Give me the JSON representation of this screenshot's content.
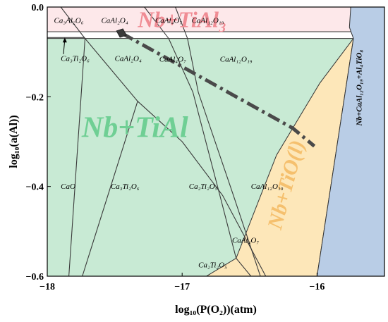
{
  "chart_data": {
    "type": "phase-diagram",
    "xlabel": "log₁₀(P(O₂))(atm)",
    "ylabel": "log₁₀(a(Al))",
    "xlim": [
      -18,
      -15.5
    ],
    "ylim": [
      -0.6,
      0.0
    ],
    "x_ticks": [
      {
        "value": -18,
        "label": "−18"
      },
      {
        "value": -17,
        "label": "−17"
      },
      {
        "value": -16,
        "label": "−16"
      }
    ],
    "y_ticks": [
      {
        "value": 0.0,
        "label": "0.0"
      },
      {
        "value": -0.2,
        "label": "−0.2"
      },
      {
        "value": -0.4,
        "label": "−0.4"
      },
      {
        "value": -0.6,
        "label": "−0.6"
      }
    ],
    "colors": {
      "nb_tial3": "#fde8ea",
      "nb_tial": "#c8ead4",
      "nb_tio": "#fde7b9",
      "nb_caal12_ti4": "#b9cde6",
      "big_tial3_text": "#f08c94",
      "big_tial_text": "#6fcf94",
      "big_tio_text": "#f5c06e"
    },
    "phase_regions": [
      {
        "name": "Nb+TiAl3",
        "polygon": [
          [
            -18,
            0.0
          ],
          [
            -15.75,
            0.0
          ],
          [
            -15.75,
            -0.055
          ],
          [
            -18,
            -0.055
          ]
        ]
      },
      {
        "name": "Nb+TiAl",
        "polygon": [
          [
            -18,
            -0.07
          ],
          [
            -15.73,
            -0.07
          ],
          [
            -16.0,
            -0.6
          ],
          [
            -18,
            -0.6
          ]
        ]
      },
      {
        "name": "Nb+TiO(l)",
        "polygon": [
          [
            -15.73,
            -0.07
          ],
          [
            -16.0,
            -0.6
          ],
          [
            -16.82,
            -0.6
          ],
          [
            -16.6,
            -0.56
          ],
          [
            -16.3,
            -0.33
          ],
          [
            -15.98,
            -0.17
          ]
        ]
      },
      {
        "name": "Nb+CaAl12O19+Al4TiO8",
        "polygon": [
          [
            -15.75,
            0.0
          ],
          [
            -15.5,
            0.0
          ],
          [
            -15.5,
            -0.6
          ],
          [
            -16.0,
            -0.6
          ],
          [
            -15.73,
            -0.07
          ],
          [
            -15.76,
            -0.045
          ]
        ]
      }
    ],
    "boundaries": [
      [
        [
          -17.9,
          0.0
        ],
        [
          -17.72,
          -0.07
        ],
        [
          -17.33,
          -0.21
        ],
        [
          -17.0,
          -0.3
        ],
        [
          -16.7,
          -0.42
        ],
        [
          -16.38,
          -0.6
        ]
      ],
      [
        [
          -17.72,
          -0.07
        ],
        [
          -17.84,
          -0.6
        ]
      ],
      [
        [
          -17.33,
          -0.21
        ],
        [
          -17.74,
          -0.6
        ]
      ],
      [
        [
          -17.28,
          0.0
        ],
        [
          -17.1,
          -0.07
        ],
        [
          -16.92,
          -0.19
        ],
        [
          -16.72,
          -0.42
        ],
        [
          -16.6,
          -0.56
        ],
        [
          -16.49,
          -0.6
        ]
      ],
      [
        [
          -17.05,
          0.0
        ],
        [
          -16.96,
          -0.07
        ],
        [
          -16.88,
          -0.19
        ],
        [
          -16.62,
          -0.42
        ],
        [
          -16.42,
          -0.6
        ]
      ],
      [
        [
          -18,
          -0.055
        ],
        [
          -17.72,
          -0.055
        ]
      ],
      [
        [
          -18,
          -0.068
        ],
        [
          -17.72,
          -0.068
        ]
      ]
    ],
    "dashed_path": [
      [
        -17.45,
        -0.058
      ],
      [
        -16.18,
        -0.27
      ],
      [
        -16.02,
        -0.31
      ]
    ],
    "marker": {
      "x": -17.45,
      "y": -0.058
    },
    "phase_labels": [
      {
        "text": "Nb+TiAl₃",
        "x": -17.0,
        "y": -0.045,
        "size": 32
      },
      {
        "text": "Nb+TiAl",
        "x": -17.35,
        "y": -0.29,
        "size": 42
      },
      {
        "text": "Nb+TiO(l)",
        "x": -16.18,
        "y": -0.4,
        "size": 30,
        "rotate": -75
      },
      {
        "text": "Nb+CaAl₁₂O₁₉+Al₄TiO₈",
        "x": -15.67,
        "y": -0.18,
        "size": 11,
        "rotate": -90
      }
    ],
    "region_labels": [
      {
        "text": "Ca₃Al₂O₆",
        "x": -17.95,
        "y": -0.035
      },
      {
        "text": "CaAl₂O₄",
        "x": -17.6,
        "y": -0.035
      },
      {
        "text": "CaAl₄O₇",
        "x": -17.2,
        "y": -0.035
      },
      {
        "text": "CaAl₁₂O₁₉",
        "x": -16.93,
        "y": -0.035
      },
      {
        "text": "Ca₃Ti₂O₆",
        "x": -17.9,
        "y": -0.12
      },
      {
        "text": "CaAl₂O₄",
        "x": -17.5,
        "y": -0.12
      },
      {
        "text": "CaAl₄O₇",
        "x": -17.17,
        "y": -0.122
      },
      {
        "text": "CaAl₁₂O₁₉",
        "x": -16.72,
        "y": -0.122
      },
      {
        "text": "CaO",
        "x": -17.9,
        "y": -0.405
      },
      {
        "text": "Ca₃Ti₂O₆",
        "x": -17.53,
        "y": -0.405
      },
      {
        "text": "Ca₂Ti₂O₅",
        "x": -16.95,
        "y": -0.405
      },
      {
        "text": "CaAl₁₂O₁₉",
        "x": -16.49,
        "y": -0.405
      },
      {
        "text": "CaAl₄O₇",
        "x": -16.63,
        "y": -0.525
      },
      {
        "text": "Ca₂Ti₂O₅",
        "x": -16.88,
        "y": -0.58
      }
    ]
  }
}
